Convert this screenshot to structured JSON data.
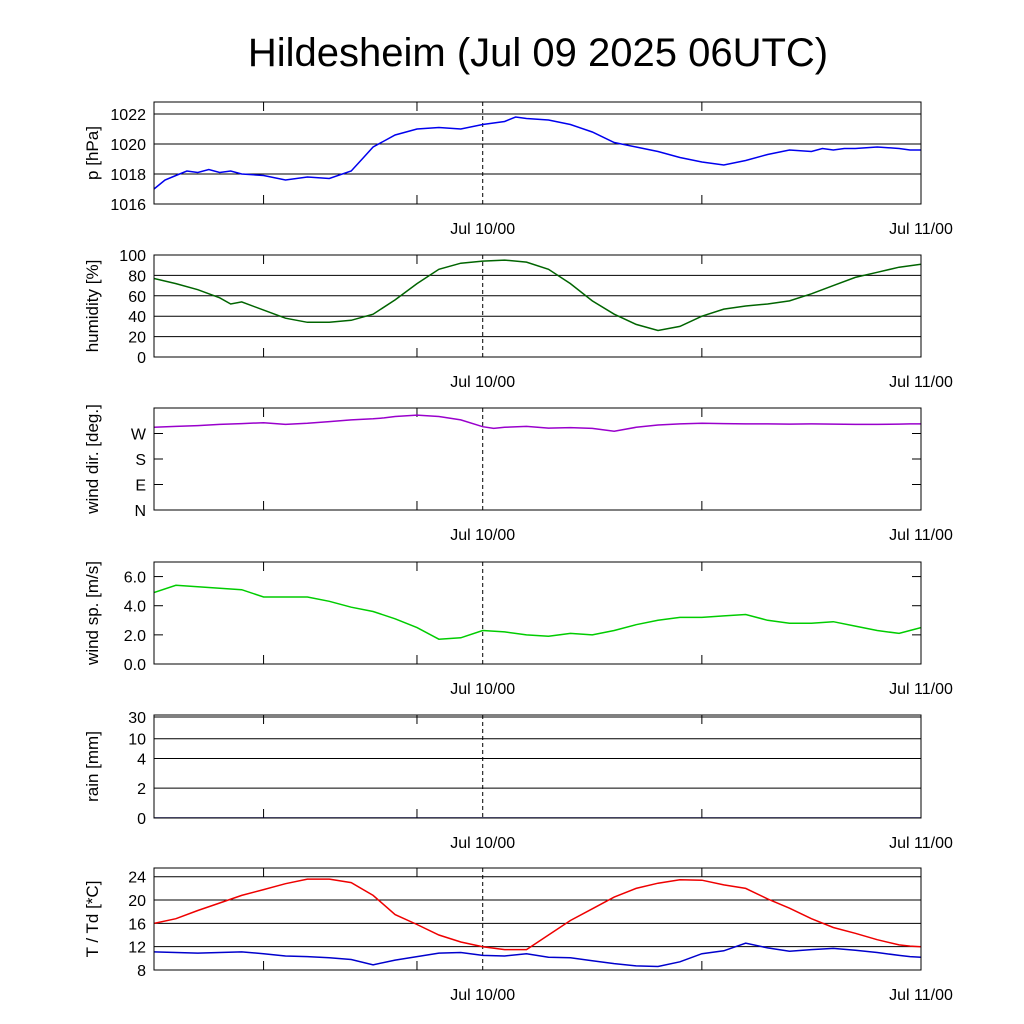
{
  "title": "Hildesheim (Jul 09 2025 06UTC)",
  "chart_data": [
    {
      "id": "pressure",
      "type": "line",
      "ylabel": "p [hPa]",
      "ylim": [
        1016,
        1022.8
      ],
      "yticks": [
        1016,
        1018,
        1020,
        1022
      ],
      "ytick_labels": [
        "1016",
        "1018",
        "1020",
        "1022"
      ],
      "grid": true,
      "xlabels": [
        "Jul 10/00",
        "Jul 11/00"
      ],
      "series": [
        {
          "color": "#0000ee",
          "points": [
            [
              0,
              1017.0
            ],
            [
              1,
              1017.6
            ],
            [
              2,
              1017.9
            ],
            [
              3,
              1018.2
            ],
            [
              4,
              1018.1
            ],
            [
              5,
              1018.3
            ],
            [
              6,
              1018.1
            ],
            [
              7,
              1018.2
            ],
            [
              8,
              1018.0
            ],
            [
              10,
              1017.9
            ],
            [
              12,
              1017.6
            ],
            [
              14,
              1017.8
            ],
            [
              16,
              1017.7
            ],
            [
              18,
              1018.2
            ],
            [
              19,
              1019.0
            ],
            [
              20,
              1019.8
            ],
            [
              22,
              1020.6
            ],
            [
              24,
              1021.0
            ],
            [
              26,
              1021.1
            ],
            [
              28,
              1021.0
            ],
            [
              30,
              1021.3
            ],
            [
              32,
              1021.5
            ],
            [
              33,
              1021.8
            ],
            [
              34,
              1021.7
            ],
            [
              36,
              1021.6
            ],
            [
              38,
              1021.3
            ],
            [
              40,
              1020.8
            ],
            [
              42,
              1020.1
            ],
            [
              44,
              1019.8
            ],
            [
              46,
              1019.5
            ],
            [
              48,
              1019.1
            ],
            [
              50,
              1018.8
            ],
            [
              52,
              1018.6
            ],
            [
              54,
              1018.9
            ],
            [
              56,
              1019.3
            ],
            [
              58,
              1019.6
            ],
            [
              60,
              1019.5
            ],
            [
              61,
              1019.7
            ],
            [
              62,
              1019.6
            ],
            [
              63,
              1019.7
            ],
            [
              64,
              1019.7
            ],
            [
              66,
              1019.8
            ],
            [
              68,
              1019.7
            ],
            [
              69,
              1019.6
            ],
            [
              70,
              1019.6
            ]
          ]
        }
      ]
    },
    {
      "id": "humidity",
      "type": "line",
      "ylabel": "humidity [%]",
      "ylim": [
        0,
        100
      ],
      "yticks": [
        0,
        20,
        40,
        60,
        80,
        100
      ],
      "ytick_labels": [
        "0",
        "20",
        "40",
        "60",
        "80",
        "100"
      ],
      "grid": true,
      "xlabels": [
        "Jul 10/00",
        "Jul 11/00"
      ],
      "series": [
        {
          "color": "#006400",
          "points": [
            [
              0,
              77
            ],
            [
              2,
              72
            ],
            [
              4,
              66
            ],
            [
              6,
              58
            ],
            [
              7,
              52
            ],
            [
              8,
              54
            ],
            [
              10,
              46
            ],
            [
              12,
              38
            ],
            [
              14,
              34
            ],
            [
              16,
              34
            ],
            [
              18,
              36
            ],
            [
              20,
              42
            ],
            [
              22,
              56
            ],
            [
              24,
              72
            ],
            [
              26,
              86
            ],
            [
              28,
              92
            ],
            [
              30,
              94
            ],
            [
              32,
              95
            ],
            [
              34,
              93
            ],
            [
              36,
              86
            ],
            [
              38,
              72
            ],
            [
              40,
              55
            ],
            [
              42,
              42
            ],
            [
              44,
              32
            ],
            [
              46,
              26
            ],
            [
              48,
              30
            ],
            [
              50,
              40
            ],
            [
              52,
              47
            ],
            [
              54,
              50
            ],
            [
              56,
              52
            ],
            [
              58,
              55
            ],
            [
              60,
              62
            ],
            [
              62,
              70
            ],
            [
              64,
              78
            ],
            [
              66,
              83
            ],
            [
              68,
              88
            ],
            [
              70,
              91
            ]
          ]
        }
      ]
    },
    {
      "id": "wind-direction",
      "type": "line",
      "ylabel": "wind dir. [deg.]",
      "ylim": [
        0,
        360
      ],
      "yticks": [
        0,
        90,
        180,
        270
      ],
      "ytick_labels": [
        "N",
        "E",
        "S",
        "W"
      ],
      "grid": false,
      "xlabels": [
        "Jul 10/00",
        "Jul 11/00"
      ],
      "series": [
        {
          "color": "#9900cc",
          "points": [
            [
              0,
              292
            ],
            [
              2,
              295
            ],
            [
              4,
              298
            ],
            [
              6,
              302
            ],
            [
              8,
              305
            ],
            [
              10,
              308
            ],
            [
              12,
              302
            ],
            [
              14,
              306
            ],
            [
              16,
              312
            ],
            [
              18,
              318
            ],
            [
              20,
              322
            ],
            [
              21,
              325
            ],
            [
              22,
              330
            ],
            [
              24,
              335
            ],
            [
              26,
              330
            ],
            [
              28,
              318
            ],
            [
              30,
              294
            ],
            [
              31,
              288
            ],
            [
              32,
              292
            ],
            [
              34,
              295
            ],
            [
              36,
              289
            ],
            [
              38,
              291
            ],
            [
              40,
              288
            ],
            [
              42,
              278
            ],
            [
              44,
              292
            ],
            [
              46,
              300
            ],
            [
              48,
              304
            ],
            [
              50,
              306
            ],
            [
              52,
              305
            ],
            [
              54,
              304
            ],
            [
              56,
              304
            ],
            [
              58,
              303
            ],
            [
              60,
              304
            ],
            [
              62,
              303
            ],
            [
              64,
              302
            ],
            [
              66,
              302
            ],
            [
              68,
              303
            ],
            [
              69,
              304
            ],
            [
              70,
              304
            ]
          ]
        }
      ],
      "annotations": []
    },
    {
      "id": "wind-speed",
      "type": "line",
      "ylabel": "wind sp. [m/s]",
      "ylim": [
        0,
        7
      ],
      "yticks": [
        0,
        2,
        4,
        6
      ],
      "ytick_labels": [
        "0.0",
        "2.0",
        "4.0",
        "6.0"
      ],
      "grid": false,
      "xlabels": [
        "Jul 10/00",
        "Jul 11/00"
      ],
      "series": [
        {
          "color": "#00cc00",
          "points": [
            [
              0,
              4.9
            ],
            [
              2,
              5.4
            ],
            [
              4,
              5.3
            ],
            [
              6,
              5.2
            ],
            [
              8,
              5.1
            ],
            [
              10,
              4.6
            ],
            [
              12,
              4.6
            ],
            [
              14,
              4.6
            ],
            [
              16,
              4.3
            ],
            [
              18,
              3.9
            ],
            [
              20,
              3.6
            ],
            [
              22,
              3.1
            ],
            [
              24,
              2.5
            ],
            [
              26,
              1.7
            ],
            [
              28,
              1.8
            ],
            [
              30,
              2.3
            ],
            [
              32,
              2.2
            ],
            [
              34,
              2.0
            ],
            [
              36,
              1.9
            ],
            [
              38,
              2.1
            ],
            [
              40,
              2.0
            ],
            [
              42,
              2.3
            ],
            [
              44,
              2.7
            ],
            [
              46,
              3.0
            ],
            [
              48,
              3.2
            ],
            [
              50,
              3.2
            ],
            [
              52,
              3.3
            ],
            [
              54,
              3.4
            ],
            [
              56,
              3.0
            ],
            [
              58,
              2.8
            ],
            [
              60,
              2.8
            ],
            [
              62,
              2.9
            ],
            [
              64,
              2.6
            ],
            [
              66,
              2.3
            ],
            [
              68,
              2.1
            ],
            [
              69,
              2.3
            ],
            [
              70,
              2.5
            ]
          ]
        }
      ]
    },
    {
      "id": "rain",
      "type": "line",
      "ylabel": "rain [mm]",
      "yticks": [
        0,
        2,
        4,
        10,
        30
      ],
      "ytick_labels": [
        "0",
        "2",
        "4",
        "10",
        "30"
      ],
      "grid": true,
      "scale": "nonlinear",
      "xlabels": [
        "Jul 10/00",
        "Jul 11/00"
      ],
      "series": [
        {
          "color": "#000080",
          "points": [
            [
              0,
              0
            ],
            [
              70,
              0
            ]
          ]
        }
      ]
    },
    {
      "id": "temperature",
      "type": "line",
      "ylabel": "T / Td [*C]",
      "ylim": [
        8,
        25.5
      ],
      "yticks": [
        8,
        12,
        16,
        20,
        24
      ],
      "ytick_labels": [
        "8",
        "12",
        "16",
        "20",
        "24"
      ],
      "grid": true,
      "xlabels": [
        "Jul 10/00",
        "Jul 11/00"
      ],
      "series": [
        {
          "color": "#ee0000",
          "points": [
            [
              0,
              16.0
            ],
            [
              2,
              16.8
            ],
            [
              4,
              18.2
            ],
            [
              6,
              19.5
            ],
            [
              8,
              20.8
            ],
            [
              10,
              21.8
            ],
            [
              12,
              22.8
            ],
            [
              14,
              23.6
            ],
            [
              16,
              23.6
            ],
            [
              18,
              23.0
            ],
            [
              20,
              20.8
            ],
            [
              22,
              17.5
            ],
            [
              24,
              15.8
            ],
            [
              26,
              14.0
            ],
            [
              28,
              12.8
            ],
            [
              30,
              12.0
            ],
            [
              32,
              11.5
            ],
            [
              34,
              11.5
            ],
            [
              36,
              14.0
            ],
            [
              38,
              16.5
            ],
            [
              40,
              18.5
            ],
            [
              42,
              20.5
            ],
            [
              44,
              22.0
            ],
            [
              46,
              22.9
            ],
            [
              48,
              23.5
            ],
            [
              50,
              23.4
            ],
            [
              52,
              22.6
            ],
            [
              54,
              22.0
            ],
            [
              56,
              20.2
            ],
            [
              58,
              18.6
            ],
            [
              60,
              16.8
            ],
            [
              62,
              15.3
            ],
            [
              64,
              14.3
            ],
            [
              66,
              13.2
            ],
            [
              68,
              12.3
            ],
            [
              69,
              12.1
            ],
            [
              70,
              12.0
            ]
          ]
        },
        {
          "color": "#0000cc",
          "points": [
            [
              0,
              11.1
            ],
            [
              2,
              11.0
            ],
            [
              4,
              10.9
            ],
            [
              6,
              11.0
            ],
            [
              8,
              11.1
            ],
            [
              10,
              10.8
            ],
            [
              12,
              10.4
            ],
            [
              14,
              10.3
            ],
            [
              16,
              10.1
            ],
            [
              18,
              9.8
            ],
            [
              20,
              8.9
            ],
            [
              22,
              9.7
            ],
            [
              24,
              10.3
            ],
            [
              26,
              10.9
            ],
            [
              28,
              11.0
            ],
            [
              30,
              10.5
            ],
            [
              32,
              10.4
            ],
            [
              34,
              10.8
            ],
            [
              36,
              10.2
            ],
            [
              38,
              10.1
            ],
            [
              40,
              9.6
            ],
            [
              42,
              9.1
            ],
            [
              44,
              8.7
            ],
            [
              46,
              8.6
            ],
            [
              48,
              9.4
            ],
            [
              50,
              10.8
            ],
            [
              52,
              11.3
            ],
            [
              54,
              12.6
            ],
            [
              56,
              11.8
            ],
            [
              58,
              11.2
            ],
            [
              60,
              11.5
            ],
            [
              62,
              11.7
            ],
            [
              64,
              11.4
            ],
            [
              66,
              11.0
            ],
            [
              68,
              10.5
            ],
            [
              69,
              10.3
            ],
            [
              70,
              10.2
            ]
          ]
        }
      ]
    }
  ]
}
